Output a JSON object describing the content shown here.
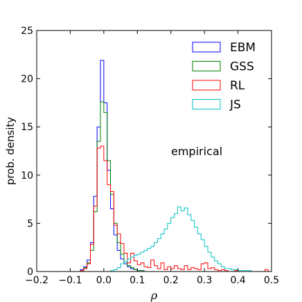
{
  "chart_data": {
    "type": "histogram",
    "xlabel": "ρ",
    "ylabel": "prob. density",
    "xlim": [
      -0.2,
      0.5
    ],
    "ylim": [
      0,
      25
    ],
    "xticks": [
      -0.2,
      -0.1,
      0.0,
      0.1,
      0.2,
      0.3,
      0.4,
      0.5
    ],
    "xtick_labels": [
      "−0.2",
      "−0.1",
      "0.0",
      "0.1",
      "0.2",
      "0.3",
      "0.4",
      "0.5"
    ],
    "yticks": [
      0,
      5,
      10,
      15,
      20,
      25
    ],
    "ytick_labels": [
      "0",
      "5",
      "10",
      "15",
      "20",
      "25"
    ],
    "annotation": "empirical",
    "legend_position": "top-right",
    "bin_width": 0.01,
    "series": [
      {
        "name": "EBM",
        "color": "#0000ff",
        "x_start": -0.07,
        "values": [
          0.2,
          0.5,
          1.2,
          3.0,
          7.8,
          15.0,
          21.9,
          17.5,
          10.5,
          6.5,
          3.8,
          2.2,
          1.3,
          0.8,
          0.5,
          0.3,
          0.2,
          0.1,
          0.1
        ]
      },
      {
        "name": "GSS",
        "color": "#008000",
        "x_start": -0.07,
        "values": [
          0.1,
          0.4,
          0.9,
          2.2,
          6.2,
          13.5,
          17.6,
          16.5,
          11.5,
          8.0,
          5.0,
          3.0,
          1.8,
          1.0,
          0.6,
          0.4,
          0.2,
          0.1,
          0.1
        ]
      },
      {
        "name": "RL",
        "color": "#ff0000",
        "x_start": -0.07,
        "values": [
          0.1,
          0.3,
          0.8,
          2.8,
          6.8,
          12.8,
          13.0,
          11.5,
          9.0,
          8.3,
          4.8,
          3.9,
          2.9,
          1.9,
          0.9,
          1.9,
          1.1,
          0.7,
          0.9,
          0.5,
          0.4,
          1.2,
          0.6,
          0.3,
          0.9,
          0.2,
          0.5,
          0.3,
          0.6,
          0.3,
          0.2,
          0.6,
          0.2,
          0.4,
          0.3,
          0.2,
          0.8,
          0.9,
          0.3,
          0.4,
          0.2,
          0.1,
          0.2,
          0.1,
          0.0,
          0.0,
          0.1,
          0.0,
          0.0,
          0.0,
          0.0,
          0.0,
          0.0,
          0.0,
          0.0,
          0.2
        ]
      },
      {
        "name": "JS",
        "color": "#00bfbf",
        "x_start": 0.02,
        "values": [
          0.1,
          0.2,
          0.4,
          0.8,
          1.0,
          1.3,
          1.5,
          1.7,
          1.8,
          2.0,
          2.2,
          2.4,
          2.6,
          3.0,
          3.4,
          3.9,
          4.4,
          5.0,
          5.6,
          6.0,
          6.7,
          6.3,
          6.6,
          5.9,
          5.3,
          4.6,
          3.9,
          3.3,
          2.6,
          2.0,
          1.5,
          1.1,
          0.8,
          0.5,
          0.3,
          0.3,
          0.2,
          0.2,
          0.1,
          0.1,
          0.1,
          0.1
        ]
      }
    ]
  }
}
